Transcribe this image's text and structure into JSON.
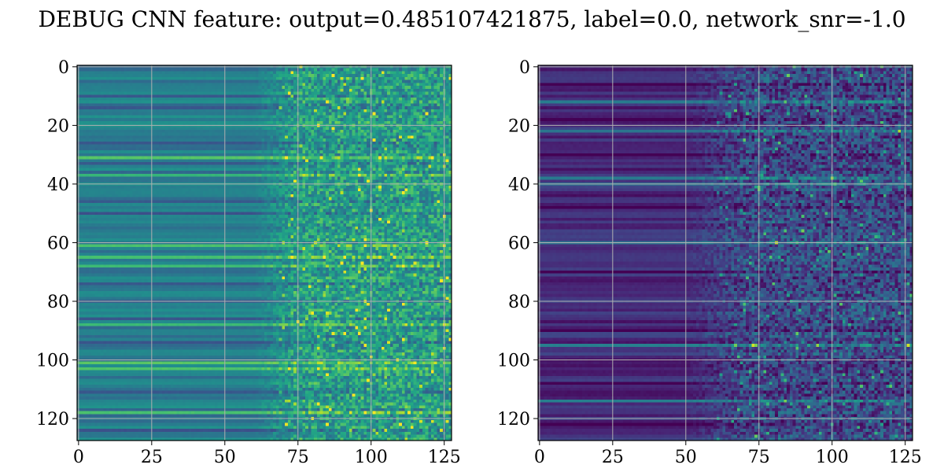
{
  "figure": {
    "title": "DEBUG CNN feature: output=0.485107421875, label=0.0, network_snr=-1.0"
  },
  "chart_data": [
    {
      "type": "heatmap",
      "colormap": "viridis",
      "rows": 128,
      "cols": 128,
      "xlim": [
        -0.5,
        127.5
      ],
      "ylim": [
        127.5,
        -0.5
      ],
      "x_ticks": [
        0,
        25,
        50,
        75,
        100,
        125
      ],
      "y_ticks": [
        0,
        20,
        40,
        60,
        80,
        100,
        120
      ],
      "x_tick_labels": [
        "0",
        "25",
        "50",
        "75",
        "100",
        "125"
      ],
      "y_tick_labels": [
        "0",
        "20",
        "40",
        "60",
        "80",
        "100",
        "120"
      ],
      "grid": true,
      "description_of_values": {
        "left_region_cols": [
          0,
          60
        ],
        "left_region_level": 0.42,
        "right_region_cols": [
          75,
          127
        ],
        "right_region_level": 0.55,
        "noise_increases_with_col": true
      },
      "bright_rows": [
        31,
        37,
        61,
        65,
        68,
        88,
        101,
        103,
        118
      ],
      "dark_rows": [
        10,
        14,
        26,
        33,
        46,
        50,
        74,
        80,
        86,
        94,
        111,
        124
      ]
    },
    {
      "type": "heatmap",
      "colormap": "viridis",
      "rows": 128,
      "cols": 128,
      "xlim": [
        -0.5,
        127.5
      ],
      "ylim": [
        127.5,
        -0.5
      ],
      "x_ticks": [
        0,
        25,
        50,
        75,
        100,
        125
      ],
      "y_ticks": [
        0,
        20,
        40,
        60,
        80,
        100,
        120
      ],
      "x_tick_labels": [
        "0",
        "25",
        "50",
        "75",
        "100",
        "125"
      ],
      "y_tick_labels": [
        "0",
        "20",
        "40",
        "60",
        "80",
        "100",
        "120"
      ],
      "grid": true,
      "description_of_values": {
        "left_region_cols": [
          0,
          50
        ],
        "left_region_level": 0.12,
        "right_region_cols": [
          70,
          127
        ],
        "right_region_level": 0.22,
        "noise_increases_with_col": true
      },
      "bright_rows": [
        12,
        22,
        38,
        40,
        60,
        95,
        114
      ],
      "dark_rows": [
        6,
        18,
        30,
        48,
        70,
        90,
        108,
        122
      ]
    }
  ]
}
